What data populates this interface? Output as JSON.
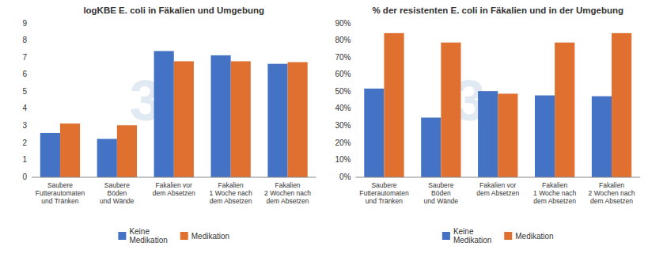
{
  "chart_data": [
    {
      "type": "bar",
      "title": "logKBE E. coli in Fäkalien und Umgebung",
      "categories": [
        "Saubere\nFutterautomaten\nund Tränken",
        "Saubere\nBöden\nund Wände",
        "Fakalien vor\ndem Absetzen",
        "Fakalien\n1 Woche nach\ndem Absetzen",
        "Fakalien\n2 Wochen nach\ndem Absetzen"
      ],
      "series": [
        {
          "name": "Keine\nMedikation",
          "color": "#4472C4",
          "values": [
            2.6,
            2.25,
            7.4,
            7.15,
            6.65
          ]
        },
        {
          "name": "Medikation",
          "color": "#E07030",
          "values": [
            3.15,
            3.05,
            6.8,
            6.8,
            6.75
          ]
        }
      ],
      "ylim": [
        0,
        9
      ],
      "yticks": [
        0,
        1,
        2,
        3,
        4,
        5,
        6,
        7,
        8,
        9
      ],
      "annotations": [
        {
          "text": "3",
          "color": "#c8d8e8"
        }
      ],
      "grid": false,
      "legend": "bottom"
    },
    {
      "type": "bar",
      "title": "% der resistenten E. coli in Fäkalien und in der Umgebung",
      "categories": [
        "Saubere\nFutterautomaten\nund Tränken",
        "Saubere\nBöden\nund Wände",
        "Fakalien vor\ndem Absetzen",
        "Fakalien\n1 Woche nach\ndem Absetzen",
        "Fakalien\n2 Wochen nach\ndem Absetzen"
      ],
      "series": [
        {
          "name": "Keine\nMedikation",
          "color": "#4472C4",
          "values": [
            0.52,
            0.35,
            0.505,
            0.48,
            0.475
          ]
        },
        {
          "name": "Medikation",
          "color": "#E07030",
          "values": [
            0.845,
            0.79,
            0.49,
            0.79,
            0.845
          ]
        }
      ],
      "ylim": [
        0,
        0.9
      ],
      "yticks": [
        {
          "value": 0.0,
          "label": "0%"
        },
        {
          "value": 0.1,
          "label": "10%"
        },
        {
          "value": 0.2,
          "label": "20%"
        },
        {
          "value": 0.3,
          "label": "30%"
        },
        {
          "value": 0.4,
          "label": "40%"
        },
        {
          "value": 0.5,
          "label": "50%"
        },
        {
          "value": 0.6,
          "label": "60%"
        },
        {
          "value": 0.7,
          "label": "70%"
        },
        {
          "value": 0.8,
          "label": "80%"
        },
        {
          "value": 0.9,
          "label": "90%"
        }
      ],
      "annotations": [
        {
          "text": "3",
          "color": "#c8d8e8"
        }
      ],
      "grid": false,
      "legend": "bottom"
    }
  ]
}
